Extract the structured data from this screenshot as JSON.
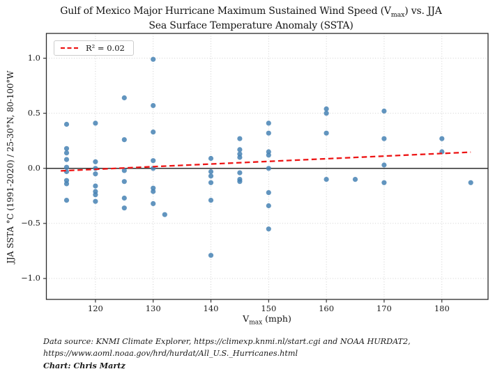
{
  "title": {
    "line1_pre": "Gulf of Mexico Major Hurricane Maximum Sustained Wind Speed (V",
    "line1_sub": "max",
    "line1_post": ") vs. JJA",
    "line2": "Sea Surface Temperature Anomaly (SSTA)"
  },
  "legend": {
    "label": "R² = 0.02"
  },
  "axes": {
    "xlabel_pre": "V",
    "xlabel_sub": "max",
    "xlabel_post": " (mph)",
    "ylabel": "JJA SSTA °C (1991-2020) / 25-30°N, 80-100°W"
  },
  "footer": {
    "line1": "Data source: KNMI Climate Explorer, https://climexp.knmi.nl/start.cgi and NOAA HURDAT2,",
    "line2": "https://www.aoml.noaa.gov/hrd/hurdat/All_U.S._Hurricanes.html",
    "line3": "Chart: Chris Martz"
  },
  "chart_data": {
    "type": "scatter",
    "title": "Gulf of Mexico Major Hurricane Maximum Sustained Wind Speed (Vmax) vs. JJA Sea Surface Temperature Anomaly (SSTA)",
    "xlabel": "Vmax (mph)",
    "ylabel": "JJA SSTA °C (1991-2020) / 25-30°N, 80-100°W",
    "xlim": [
      111.5,
      188
    ],
    "ylim": [
      -1.19,
      1.225
    ],
    "grid": true,
    "legend_position": "upper left",
    "point_color": "#4682B4",
    "zero_line": true,
    "x_ticks": [
      {
        "v": 120,
        "label": "120"
      },
      {
        "v": 130,
        "label": "130"
      },
      {
        "v": 140,
        "label": "140"
      },
      {
        "v": 150,
        "label": "150"
      },
      {
        "v": 160,
        "label": "160"
      },
      {
        "v": 170,
        "label": "170"
      },
      {
        "v": 180,
        "label": "180"
      }
    ],
    "y_ticks": [
      {
        "v": -1.0,
        "label": "−1.0"
      },
      {
        "v": -0.5,
        "label": "−0.5"
      },
      {
        "v": 0.0,
        "label": "0.0"
      },
      {
        "v": 0.5,
        "label": "0.5"
      },
      {
        "v": 1.0,
        "label": "1.0"
      }
    ],
    "trend": {
      "label": "R² = 0.02",
      "color": "#ed1515",
      "style": "dashed",
      "x1": 114,
      "y1": -0.023,
      "x2": 185,
      "y2": 0.147
    },
    "points": [
      [
        115,
        0.4
      ],
      [
        115,
        0.18
      ],
      [
        115,
        0.14
      ],
      [
        115,
        0.08
      ],
      [
        115,
        0.01
      ],
      [
        115,
        -0.03
      ],
      [
        115,
        -0.11
      ],
      [
        115,
        -0.14
      ],
      [
        115,
        -0.29
      ],
      [
        120,
        0.41
      ],
      [
        120,
        0.06
      ],
      [
        120,
        0.0
      ],
      [
        120,
        -0.05
      ],
      [
        120,
        -0.16
      ],
      [
        120,
        -0.21
      ],
      [
        120,
        -0.24
      ],
      [
        120,
        -0.3
      ],
      [
        125,
        0.64
      ],
      [
        125,
        0.26
      ],
      [
        125,
        -0.02
      ],
      [
        125,
        -0.12
      ],
      [
        125,
        -0.27
      ],
      [
        125,
        -0.36
      ],
      [
        130,
        0.99
      ],
      [
        130,
        0.57
      ],
      [
        130,
        0.33
      ],
      [
        130,
        0.07
      ],
      [
        130,
        0.0
      ],
      [
        130,
        -0.18
      ],
      [
        130,
        -0.21
      ],
      [
        130,
        -0.32
      ],
      [
        132,
        -0.42
      ],
      [
        140,
        0.09
      ],
      [
        140,
        -0.03
      ],
      [
        140,
        -0.07
      ],
      [
        140,
        -0.13
      ],
      [
        140,
        -0.29
      ],
      [
        140,
        -0.79
      ],
      [
        145,
        0.27
      ],
      [
        145,
        0.17
      ],
      [
        145,
        0.13
      ],
      [
        145,
        0.1
      ],
      [
        145,
        -0.04
      ],
      [
        145,
        -0.1
      ],
      [
        145,
        -0.12
      ],
      [
        150,
        0.41
      ],
      [
        150,
        0.32
      ],
      [
        150,
        0.15
      ],
      [
        150,
        0.12
      ],
      [
        150,
        0.0
      ],
      [
        150,
        -0.22
      ],
      [
        150,
        -0.34
      ],
      [
        150,
        -0.55
      ],
      [
        160,
        0.54
      ],
      [
        160,
        0.5
      ],
      [
        160,
        0.32
      ],
      [
        160,
        -0.1
      ],
      [
        165,
        -0.1
      ],
      [
        170,
        0.52
      ],
      [
        170,
        0.27
      ],
      [
        170,
        0.03
      ],
      [
        170,
        -0.13
      ],
      [
        180,
        0.27
      ],
      [
        180,
        0.15
      ],
      [
        185,
        -0.13
      ]
    ]
  }
}
